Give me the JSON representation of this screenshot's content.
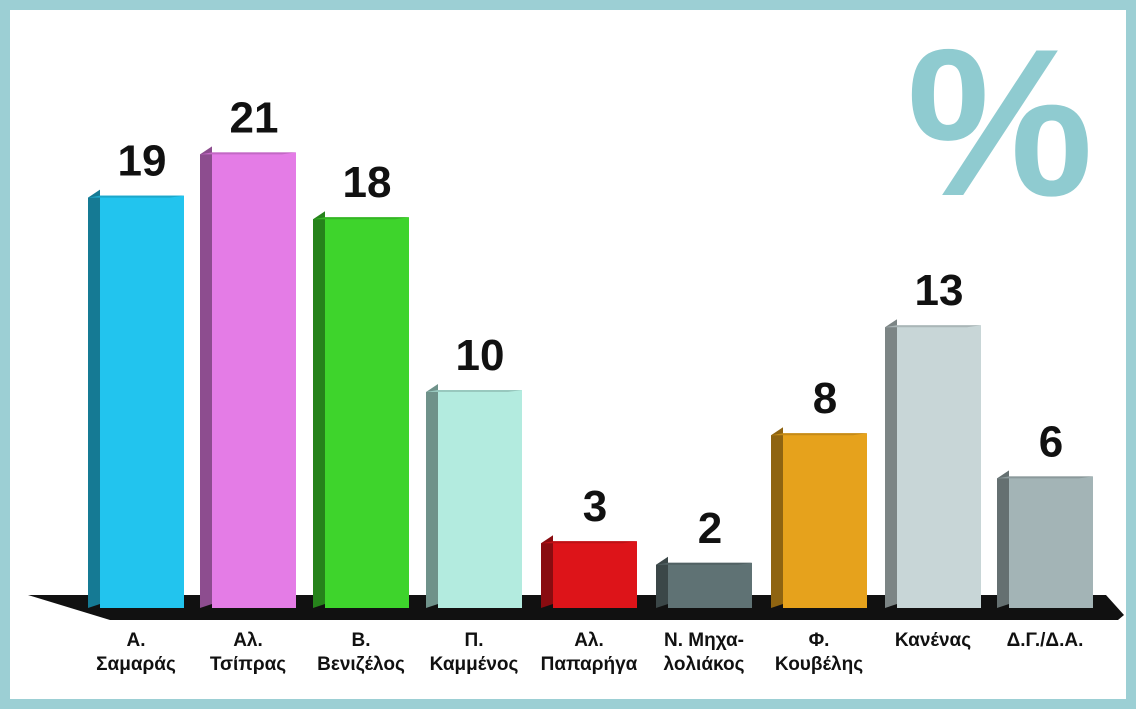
{
  "chart_data": {
    "type": "bar",
    "title": "",
    "unit_symbol": "%",
    "xlabel": "",
    "ylabel": "",
    "ylim": [
      0,
      21
    ],
    "grid": false,
    "legend": "none",
    "categories": [
      [
        "Α.",
        "Σαμαράς"
      ],
      [
        "Αλ.",
        "Τσίπρας"
      ],
      [
        "Β.",
        "Βενιζέλος"
      ],
      [
        "Π.",
        "Καμμένος"
      ],
      [
        "Αλ.",
        "Παπαρήγα"
      ],
      [
        "Ν. Μηχα-",
        "λολιάκος"
      ],
      [
        "Φ.",
        "Κουβέλης"
      ],
      [
        "Κανένας"
      ],
      [
        "Δ.Γ./Δ.Α."
      ]
    ],
    "values": [
      19,
      21,
      18,
      10,
      3,
      2,
      8,
      13,
      6
    ],
    "colors": [
      "#22c4ee",
      "#e47ce6",
      "#3ed42c",
      "#b3ebdf",
      "#dd1419",
      "#5f7274",
      "#e6a21c",
      "#c8d6d7",
      "#a3b4b6"
    ],
    "accent_color": "#8fcbd0"
  }
}
